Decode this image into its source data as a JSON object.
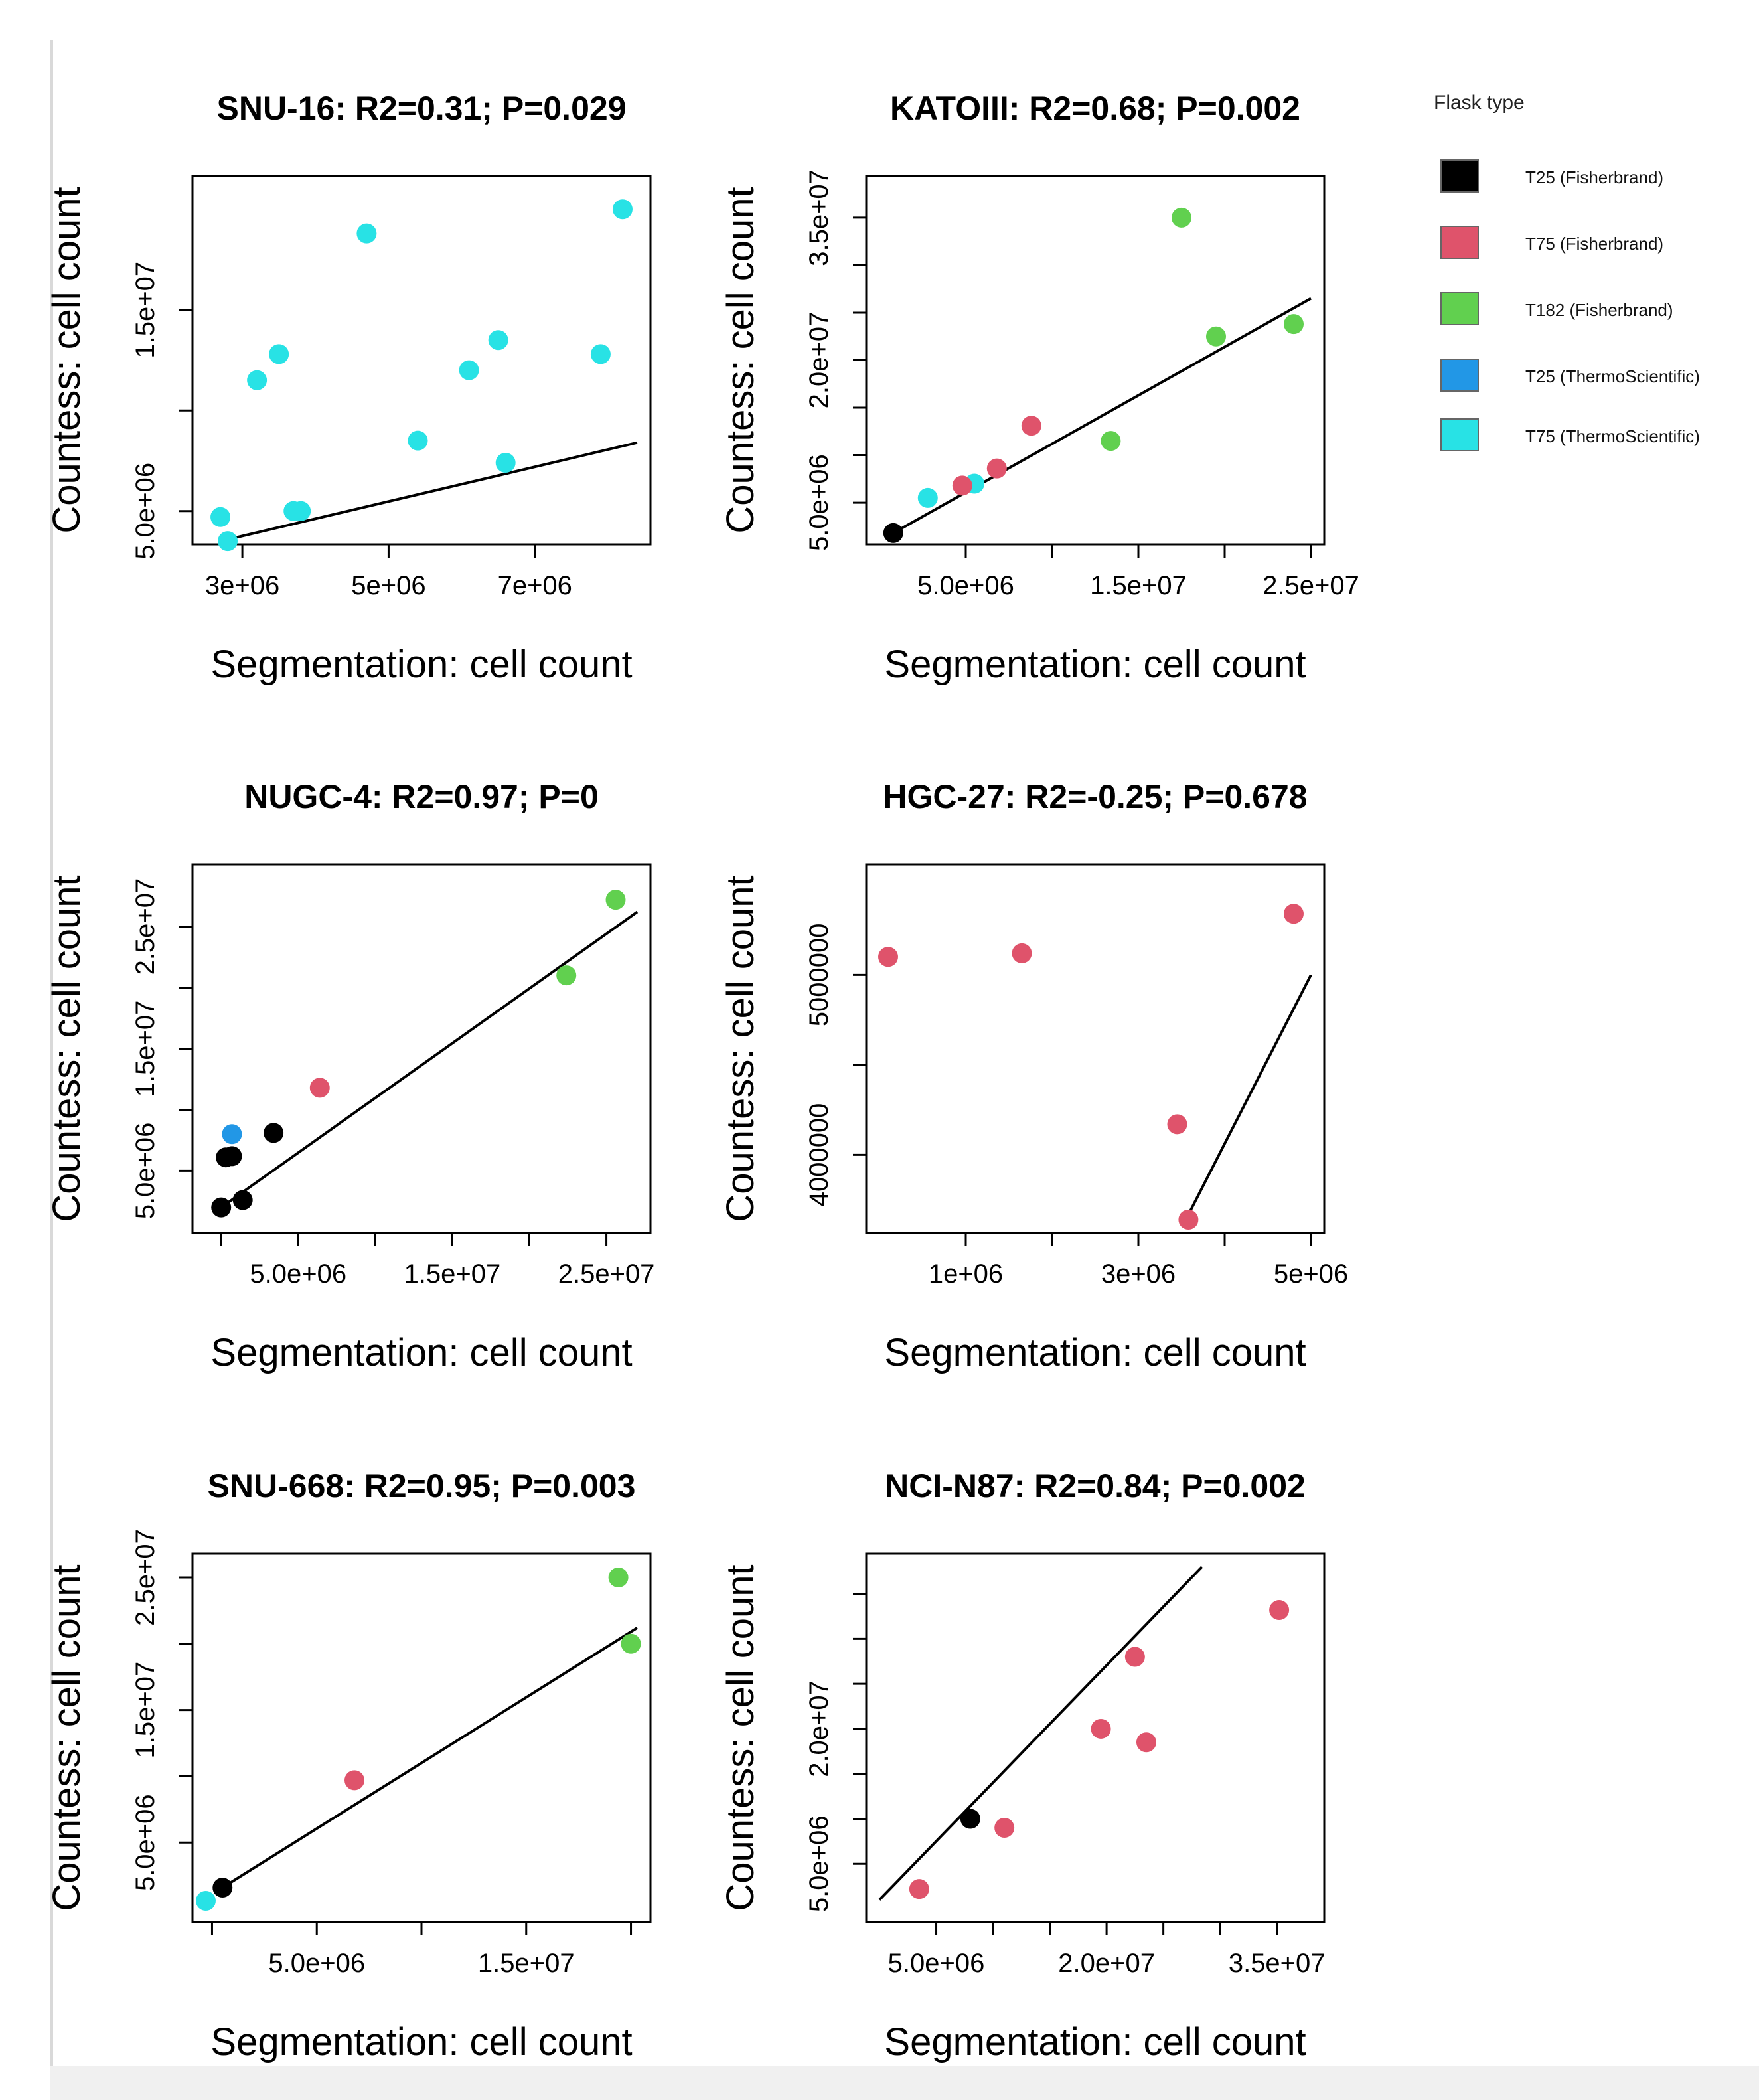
{
  "legend": {
    "title": "Flask type",
    "items": [
      {
        "label": "T25 (Fisherbrand)",
        "color": "#000000"
      },
      {
        "label": "T75 (Fisherbrand)",
        "color": "#DF536B"
      },
      {
        "label": "T182 (Fisherbrand)",
        "color": "#61D04F"
      },
      {
        "label": "T25 (ThermoScientific)",
        "color": "#2297E6"
      },
      {
        "label": "T75 (ThermoScientific)",
        "color": "#28E2E5"
      }
    ]
  },
  "chart_data": [
    {
      "type": "scatter",
      "title": "SNU-16: R2=0.31; P=0.029",
      "xlabel": "Segmentation: cell count",
      "ylabel": "Countess: cell count",
      "xlim": [
        2500000,
        8400000
      ],
      "ylim": [
        4000000,
        21000000
      ],
      "xticks": [
        3000000,
        5000000,
        7000000
      ],
      "xtick_labels": [
        "3e+06",
        "5e+06",
        "7e+06"
      ],
      "yticks": [
        5000000,
        10000000,
        15000000
      ],
      "ytick_labels": [
        "5.0e+06",
        "",
        "1.5e+07"
      ],
      "points": [
        {
          "x": 2700000,
          "y": 4700000,
          "group": "T75 (ThermoScientific)"
        },
        {
          "x": 2800000,
          "y": 3500000,
          "group": "T75 (ThermoScientific)"
        },
        {
          "x": 3200000,
          "y": 11500000,
          "group": "T75 (ThermoScientific)"
        },
        {
          "x": 3500000,
          "y": 12800000,
          "group": "T75 (ThermoScientific)"
        },
        {
          "x": 3700000,
          "y": 5000000,
          "group": "T75 (ThermoScientific)"
        },
        {
          "x": 3800000,
          "y": 5000000,
          "group": "T75 (ThermoScientific)"
        },
        {
          "x": 4700000,
          "y": 18800000,
          "group": "T75 (ThermoScientific)"
        },
        {
          "x": 5400000,
          "y": 8500000,
          "group": "T75 (ThermoScientific)"
        },
        {
          "x": 6100000,
          "y": 12000000,
          "group": "T75 (ThermoScientific)"
        },
        {
          "x": 6500000,
          "y": 13500000,
          "group": "T75 (ThermoScientific)"
        },
        {
          "x": 6600000,
          "y": 7400000,
          "group": "T75 (ThermoScientific)"
        },
        {
          "x": 7900000,
          "y": 12800000,
          "group": "T75 (ThermoScientific)"
        },
        {
          "x": 8200000,
          "y": 20000000,
          "group": "T75 (ThermoScientific)"
        }
      ],
      "fit_line": [
        [
          2700000,
          3500000
        ],
        [
          8400000,
          8400000
        ]
      ]
    },
    {
      "type": "scatter",
      "title": "KATOIII: R2=0.68; P=0.002",
      "xlabel": "Segmentation: cell count",
      "ylabel": "Countess: cell count",
      "xlim": [
        0,
        25000000
      ],
      "ylim": [
        2000000,
        38000000
      ],
      "xticks": [
        5000000,
        10000000,
        15000000,
        20000000,
        25000000
      ],
      "xtick_labels": [
        "5.0e+06",
        "",
        "1.5e+07",
        "",
        "2.5e+07"
      ],
      "yticks": [
        5000000,
        10000000,
        15000000,
        20000000,
        25000000,
        30000000,
        35000000
      ],
      "ytick_labels": [
        "5.0e+06",
        "",
        "",
        "2.0e+07",
        "",
        "",
        "3.5e+07"
      ],
      "points": [
        {
          "x": 800000,
          "y": 1800000,
          "group": "T25 (Fisherbrand)"
        },
        {
          "x": 2800000,
          "y": 5500000,
          "group": "T75 (ThermoScientific)"
        },
        {
          "x": 5500000,
          "y": 7000000,
          "group": "T75 (ThermoScientific)"
        },
        {
          "x": 4800000,
          "y": 6800000,
          "group": "T75 (Fisherbrand)"
        },
        {
          "x": 6800000,
          "y": 8600000,
          "group": "T75 (Fisherbrand)"
        },
        {
          "x": 8800000,
          "y": 13100000,
          "group": "T75 (Fisherbrand)"
        },
        {
          "x": 13400000,
          "y": 11500000,
          "group": "T182 (Fisherbrand)"
        },
        {
          "x": 17500000,
          "y": 35000000,
          "group": "T182 (Fisherbrand)"
        },
        {
          "x": 19500000,
          "y": 22500000,
          "group": "T182 (Fisherbrand)"
        },
        {
          "x": 24000000,
          "y": 23800000,
          "group": "T182 (Fisherbrand)"
        }
      ],
      "fit_line": [
        [
          800000,
          1800000
        ],
        [
          25000000,
          26500000
        ]
      ]
    },
    {
      "type": "scatter",
      "title": "NUGC-4: R2=0.97; P=0",
      "xlabel": "Segmentation: cell count",
      "ylabel": "Countess: cell count",
      "xlim": [
        -1000000,
        27000000
      ],
      "ylim": [
        1000000,
        29000000
      ],
      "xticks": [
        0,
        5000000,
        10000000,
        15000000,
        20000000,
        25000000
      ],
      "xtick_labels": [
        "",
        "5.0e+06",
        "",
        "1.5e+07",
        "",
        "2.5e+07"
      ],
      "yticks": [
        5000000,
        10000000,
        15000000,
        20000000,
        25000000
      ],
      "ytick_labels": [
        "5.0e+06",
        "",
        "1.5e+07",
        "",
        "2.5e+07"
      ],
      "points": [
        {
          "x": 0,
          "y": 2000000,
          "group": "T25 (Fisherbrand)"
        },
        {
          "x": 300000,
          "y": 6100000,
          "group": "T25 (Fisherbrand)"
        },
        {
          "x": 700000,
          "y": 6200000,
          "group": "T25 (Fisherbrand)"
        },
        {
          "x": 1400000,
          "y": 2600000,
          "group": "T25 (Fisherbrand)"
        },
        {
          "x": 3400000,
          "y": 8100000,
          "group": "T25 (Fisherbrand)"
        },
        {
          "x": 700000,
          "y": 8000000,
          "group": "T25 (ThermoScientific)"
        },
        {
          "x": 6400000,
          "y": 11800000,
          "group": "T75 (Fisherbrand)"
        },
        {
          "x": 22400000,
          "y": 21000000,
          "group": "T182 (Fisherbrand)"
        },
        {
          "x": 25600000,
          "y": 27200000,
          "group": "T182 (Fisherbrand)"
        }
      ],
      "fit_line": [
        [
          0,
          2000000
        ],
        [
          27000000,
          26200000
        ]
      ]
    },
    {
      "type": "scatter",
      "title": "HGC-27: R2=-0.25; P=0.678",
      "xlabel": "Segmentation: cell count",
      "ylabel": "Countess: cell count",
      "xlim": [
        0,
        5000000
      ],
      "ylim": [
        3640000,
        5540000
      ],
      "xticks": [
        1000000,
        2000000,
        3000000,
        4000000,
        5000000
      ],
      "xtick_labels": [
        "1e+06",
        "",
        "3e+06",
        "",
        "5e+06"
      ],
      "yticks": [
        4000000,
        4500000,
        5000000
      ],
      "ytick_labels": [
        "4000000",
        "",
        "5000000"
      ],
      "points": [
        {
          "x": 100000,
          "y": 5100000,
          "group": "T75 (Fisherbrand)"
        },
        {
          "x": 1650000,
          "y": 5120000,
          "group": "T75 (Fisherbrand)"
        },
        {
          "x": 3450000,
          "y": 4170000,
          "group": "T75 (Fisherbrand)"
        },
        {
          "x": 3580000,
          "y": 3640000,
          "group": "T75 (Fisherbrand)"
        },
        {
          "x": 4800000,
          "y": 5340000,
          "group": "T75 (Fisherbrand)"
        }
      ],
      "fit_line": [
        [
          3550000,
          3640000
        ],
        [
          5000000,
          5000000
        ]
      ]
    },
    {
      "type": "scatter",
      "title": "SNU-668: R2=0.95; P=0.003",
      "xlabel": "Segmentation: cell count",
      "ylabel": "Countess: cell count",
      "xlim": [
        -300000,
        20300000
      ],
      "ylim": [
        0,
        25800000
      ],
      "xticks": [
        0,
        5000000,
        10000000,
        15000000,
        20000000
      ],
      "xtick_labels": [
        "",
        "5.0e+06",
        "",
        "1.5e+07",
        ""
      ],
      "yticks": [
        5000000,
        10000000,
        15000000,
        20000000,
        25000000
      ],
      "ytick_labels": [
        "5.0e+06",
        "",
        "1.5e+07",
        "",
        "2.5e+07"
      ],
      "points": [
        {
          "x": 500000,
          "y": 1600000,
          "group": "T25 (Fisherbrand)"
        },
        {
          "x": -300000,
          "y": 600000,
          "group": "T75 (ThermoScientific)"
        },
        {
          "x": 6800000,
          "y": 9700000,
          "group": "T75 (Fisherbrand)"
        },
        {
          "x": 19400000,
          "y": 25000000,
          "group": "T182 (Fisherbrand)"
        },
        {
          "x": 20000000,
          "y": 20000000,
          "group": "T182 (Fisherbrand)"
        }
      ],
      "fit_line": [
        [
          500000,
          1600000
        ],
        [
          20300000,
          21200000
        ]
      ]
    },
    {
      "type": "scatter",
      "title": "NCI-N87: R2=0.84; P=0.002",
      "xlabel": "Segmentation: cell count",
      "ylabel": "Countess: cell count",
      "xlim": [
        0,
        38000000
      ],
      "ylim": [
        0,
        38000000
      ],
      "xticks": [
        5000000,
        10000000,
        15000000,
        20000000,
        25000000,
        30000000,
        35000000
      ],
      "xtick_labels": [
        "5.0e+06",
        "",
        "",
        "2.0e+07",
        "",
        "",
        "3.5e+07"
      ],
      "yticks": [
        5000000,
        10000000,
        15000000,
        20000000,
        25000000,
        30000000,
        35000000
      ],
      "ytick_labels": [
        "5.0e+06",
        "",
        "",
        "2.0e+07",
        "",
        "",
        ""
      ],
      "points": [
        {
          "x": 3500000,
          "y": 2200000,
          "group": "T75 (Fisherbrand)"
        },
        {
          "x": 8000000,
          "y": 10000000,
          "group": "T25 (Fisherbrand)"
        },
        {
          "x": 11000000,
          "y": 9000000,
          "group": "T75 (Fisherbrand)"
        },
        {
          "x": 19500000,
          "y": 20000000,
          "group": "T75 (Fisherbrand)"
        },
        {
          "x": 22500000,
          "y": 28000000,
          "group": "T75 (Fisherbrand)"
        },
        {
          "x": 23500000,
          "y": 18500000,
          "group": "T75 (Fisherbrand)"
        },
        {
          "x": 35200000,
          "y": 33200000,
          "group": "T75 (Fisherbrand)"
        }
      ],
      "fit_line": [
        [
          0,
          1000000
        ],
        [
          28400000,
          38000000
        ]
      ]
    }
  ]
}
